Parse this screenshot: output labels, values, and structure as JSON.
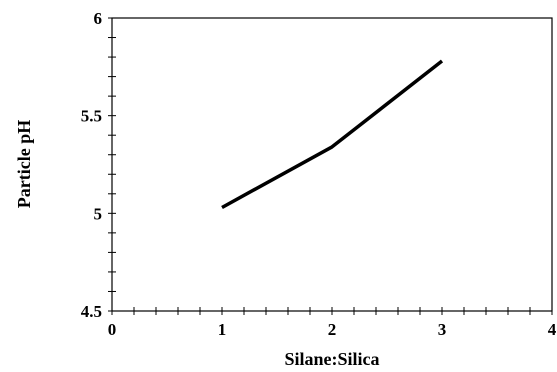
{
  "chart_data": {
    "type": "line",
    "title": "",
    "xlabel": "Silane:Silica",
    "ylabel": "Particle pH",
    "xlim": [
      0,
      4
    ],
    "ylim": [
      4.5,
      6
    ],
    "x_ticks": [
      0,
      1,
      2,
      3,
      4
    ],
    "x_tick_labels": [
      "0",
      "1",
      "2",
      "3",
      "4"
    ],
    "y_ticks": [
      4.5,
      5,
      5.5,
      6
    ],
    "y_tick_labels": [
      "4.5",
      "5",
      "5.5",
      "6"
    ],
    "grid": false,
    "legend": "none",
    "series": [
      {
        "x": [
          1,
          2,
          3
        ],
        "y": [
          5.03,
          5.34,
          5.78
        ],
        "color": "#000000"
      }
    ]
  }
}
